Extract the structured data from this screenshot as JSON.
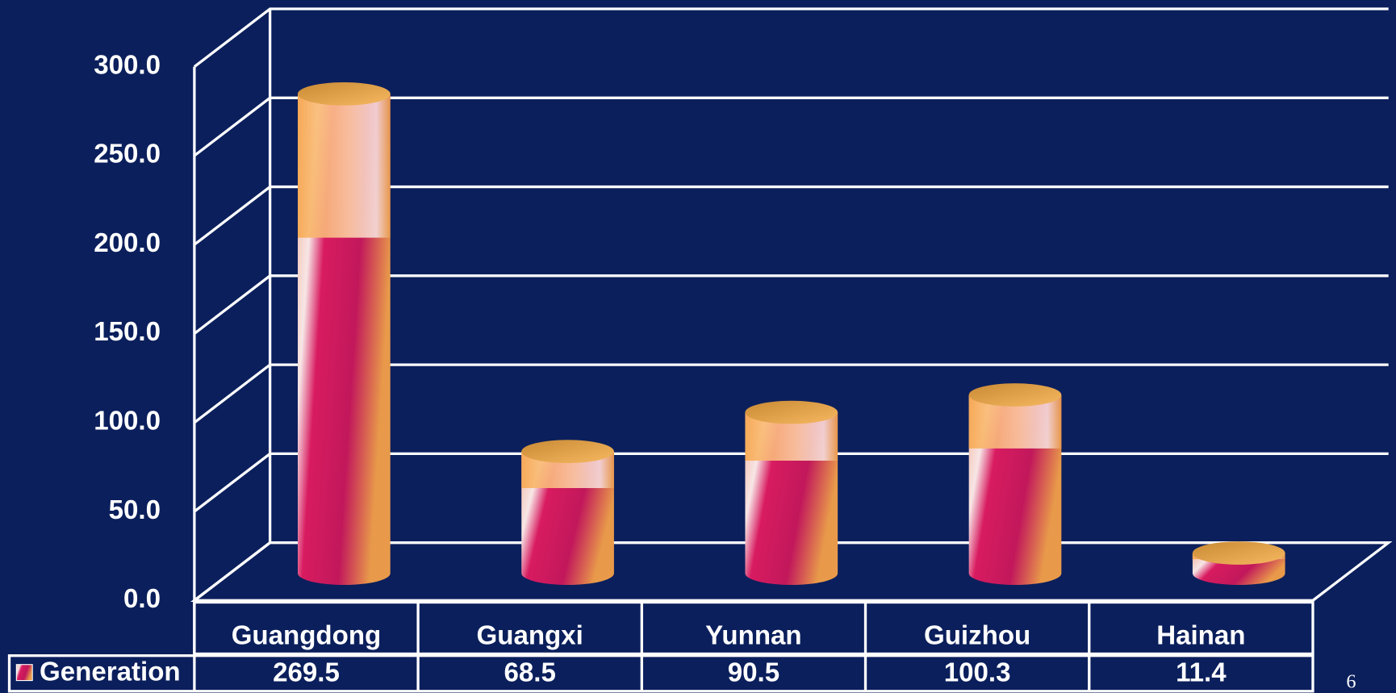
{
  "chart_data": {
    "type": "bar",
    "categories": [
      "Guangdong",
      "Guangxi",
      "Yunnan",
      "Guizhou",
      "Hainan"
    ],
    "series": [
      {
        "name": "Generation",
        "color": "#f4a84a",
        "values": [
          269.5,
          68.5,
          90.5,
          100.3,
          11.4
        ]
      }
    ],
    "ylim": [
      0,
      300
    ],
    "yticks": [
      {
        "value": 0,
        "label": "0.0"
      },
      {
        "value": 50,
        "label": "50.0"
      },
      {
        "value": 100,
        "label": "100.0"
      },
      {
        "value": 150,
        "label": "150.0"
      },
      {
        "value": 200,
        "label": "200.0"
      },
      {
        "value": 250,
        "label": "250.0"
      },
      {
        "value": 300,
        "label": "300.0"
      }
    ],
    "grid": true,
    "annotations": [
      "6"
    ]
  }
}
